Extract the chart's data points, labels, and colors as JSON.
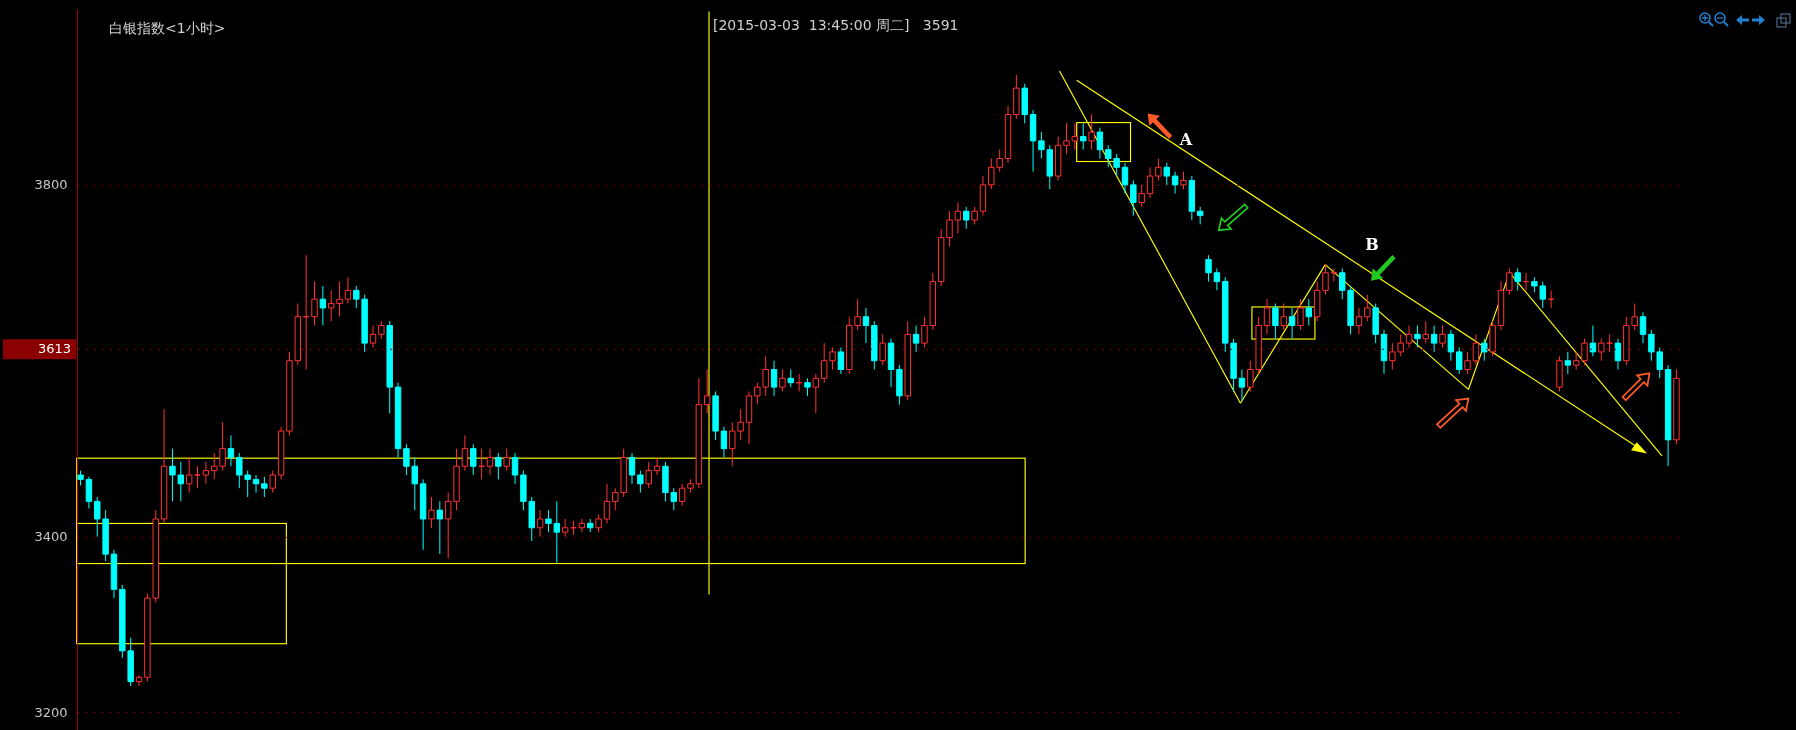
{
  "chart_data": {
    "type": "candlestick",
    "title": "白银指数<1小时>",
    "annotations": [
      "[2015-03-03  13:45:00 周二]   3591",
      "A",
      "B"
    ],
    "categories": [
      null,
      null,
      null,
      null,
      null,
      null,
      null,
      null,
      null,
      null,
      null,
      null,
      null,
      null,
      null,
      null,
      null,
      null,
      null,
      null,
      null,
      null,
      null,
      null,
      null,
      null,
      null,
      null,
      null,
      null,
      null,
      null,
      null,
      null,
      null,
      null,
      null,
      null,
      null,
      null,
      null,
      null,
      null,
      null,
      null,
      null,
      null,
      null,
      null,
      null,
      null,
      null,
      null,
      null,
      null,
      null,
      null,
      null,
      null,
      null,
      null,
      null,
      null,
      null,
      null,
      null,
      null,
      null,
      null,
      null,
      null,
      null,
      null,
      null,
      null,
      null,
      null,
      null,
      null,
      null,
      null,
      null,
      null,
      null,
      null,
      null,
      null,
      null,
      null,
      null,
      null,
      null,
      null,
      null,
      null,
      null,
      null,
      null,
      null,
      null,
      null,
      null,
      null,
      null,
      null,
      null,
      null,
      null,
      null,
      null,
      null,
      null,
      null,
      null,
      null,
      null,
      null,
      null,
      null,
      null,
      null,
      null,
      null,
      null,
      null,
      null,
      null,
      null,
      null,
      null,
      null,
      null,
      null,
      null,
      null,
      null,
      null,
      null,
      null,
      null,
      null,
      null,
      null,
      null,
      null,
      null,
      null,
      null,
      null,
      null,
      null,
      null,
      null,
      null,
      null,
      null,
      null,
      null,
      null,
      null,
      null,
      null,
      null,
      null,
      null,
      null,
      null,
      null,
      null,
      null,
      null,
      null,
      null,
      null,
      null,
      null,
      null,
      null,
      null,
      null,
      null,
      null,
      null,
      null,
      null,
      null,
      null,
      null,
      null,
      null,
      null,
      null
    ],
    "ohlc": [
      [
        3470,
        3475,
        3458,
        3465
      ],
      [
        3465,
        3468,
        3432,
        3440
      ],
      [
        3440,
        3445,
        3400,
        3420
      ],
      [
        3420,
        3430,
        3372,
        3380
      ],
      [
        3380,
        3385,
        3330,
        3340
      ],
      [
        3340,
        3345,
        3262,
        3270
      ],
      [
        3270,
        3285,
        3230,
        3235
      ],
      [
        3235,
        3242,
        3230,
        3240
      ],
      [
        3240,
        3335,
        3235,
        3330
      ],
      [
        3330,
        3430,
        3325,
        3420
      ],
      [
        3420,
        3545,
        3415,
        3480
      ],
      [
        3480,
        3500,
        3440,
        3470
      ],
      [
        3470,
        3485,
        3440,
        3460
      ],
      [
        3460,
        3490,
        3450,
        3470
      ],
      [
        3470,
        3480,
        3455,
        3470
      ],
      [
        3470,
        3485,
        3460,
        3475
      ],
      [
        3475,
        3495,
        3465,
        3480
      ],
      [
        3480,
        3530,
        3475,
        3500
      ],
      [
        3500,
        3515,
        3480,
        3490
      ],
      [
        3490,
        3495,
        3455,
        3470
      ],
      [
        3470,
        3475,
        3445,
        3465
      ],
      [
        3465,
        3470,
        3450,
        3460
      ],
      [
        3460,
        3468,
        3445,
        3455
      ],
      [
        3455,
        3475,
        3450,
        3470
      ],
      [
        3470,
        3525,
        3465,
        3520
      ],
      [
        3520,
        3610,
        3515,
        3600
      ],
      [
        3600,
        3665,
        3595,
        3650
      ],
      [
        3650,
        3720,
        3590,
        3650
      ],
      [
        3650,
        3690,
        3640,
        3670
      ],
      [
        3670,
        3685,
        3640,
        3660
      ],
      [
        3660,
        3680,
        3645,
        3665
      ],
      [
        3665,
        3690,
        3650,
        3670
      ],
      [
        3670,
        3695,
        3665,
        3680
      ],
      [
        3680,
        3685,
        3660,
        3670
      ],
      [
        3670,
        3675,
        3610,
        3620
      ],
      [
        3620,
        3640,
        3615,
        3630
      ],
      [
        3630,
        3645,
        3625,
        3640
      ],
      [
        3640,
        3645,
        3540,
        3570
      ],
      [
        3570,
        3575,
        3490,
        3500
      ],
      [
        3500,
        3505,
        3470,
        3480
      ],
      [
        3480,
        3490,
        3430,
        3460
      ],
      [
        3460,
        3465,
        3385,
        3420
      ],
      [
        3420,
        3445,
        3410,
        3430
      ],
      [
        3430,
        3440,
        3380,
        3420
      ],
      [
        3420,
        3450,
        3375,
        3440
      ],
      [
        3440,
        3500,
        3430,
        3480
      ],
      [
        3480,
        3515,
        3475,
        3500
      ],
      [
        3500,
        3505,
        3470,
        3480
      ],
      [
        3480,
        3500,
        3465,
        3480
      ],
      [
        3480,
        3500,
        3470,
        3490
      ],
      [
        3490,
        3495,
        3465,
        3480
      ],
      [
        3480,
        3500,
        3475,
        3490
      ],
      [
        3490,
        3495,
        3460,
        3470
      ],
      [
        3470,
        3475,
        3430,
        3440
      ],
      [
        3440,
        3445,
        3395,
        3410
      ],
      [
        3410,
        3430,
        3400,
        3420
      ],
      [
        3420,
        3430,
        3405,
        3415
      ],
      [
        3415,
        3440,
        3370,
        3405
      ],
      [
        3405,
        3420,
        3400,
        3410
      ],
      [
        3410,
        3418,
        3402,
        3410
      ],
      [
        3410,
        3420,
        3405,
        3415
      ],
      [
        3415,
        3420,
        3405,
        3410
      ],
      [
        3410,
        3425,
        3405,
        3420
      ],
      [
        3420,
        3460,
        3415,
        3440
      ],
      [
        3440,
        3455,
        3430,
        3450
      ],
      [
        3450,
        3500,
        3445,
        3490
      ],
      [
        3490,
        3495,
        3460,
        3470
      ],
      [
        3470,
        3475,
        3450,
        3460
      ],
      [
        3460,
        3485,
        3455,
        3475
      ],
      [
        3475,
        3490,
        3470,
        3480
      ],
      [
        3480,
        3485,
        3440,
        3450
      ],
      [
        3450,
        3455,
        3430,
        3440
      ],
      [
        3440,
        3460,
        3435,
        3455
      ],
      [
        3455,
        3465,
        3450,
        3460
      ],
      [
        3460,
        3580,
        3455,
        3550
      ],
      [
        3550,
        3590,
        3540,
        3560
      ],
      [
        3560,
        3565,
        3510,
        3520
      ],
      [
        3520,
        3525,
        3490,
        3500
      ],
      [
        3500,
        3530,
        3480,
        3520
      ],
      [
        3520,
        3545,
        3510,
        3530
      ],
      [
        3530,
        3565,
        3505,
        3560
      ],
      [
        3560,
        3575,
        3550,
        3570
      ],
      [
        3570,
        3605,
        3560,
        3590
      ],
      [
        3590,
        3600,
        3560,
        3570
      ],
      [
        3570,
        3590,
        3565,
        3580
      ],
      [
        3580,
        3590,
        3570,
        3575
      ],
      [
        3575,
        3585,
        3565,
        3575
      ],
      [
        3575,
        3580,
        3560,
        3570
      ],
      [
        3570,
        3585,
        3540,
        3580
      ],
      [
        3580,
        3620,
        3575,
        3600
      ],
      [
        3600,
        3615,
        3590,
        3610
      ],
      [
        3610,
        3615,
        3585,
        3590
      ],
      [
        3590,
        3650,
        3585,
        3640
      ],
      [
        3640,
        3670,
        3635,
        3650
      ],
      [
        3650,
        3660,
        3620,
        3640
      ],
      [
        3640,
        3645,
        3590,
        3600
      ],
      [
        3600,
        3630,
        3595,
        3620
      ],
      [
        3620,
        3625,
        3570,
        3590
      ],
      [
        3590,
        3595,
        3550,
        3560
      ],
      [
        3560,
        3645,
        3555,
        3630
      ],
      [
        3630,
        3640,
        3610,
        3620
      ],
      [
        3620,
        3650,
        3615,
        3640
      ],
      [
        3640,
        3700,
        3635,
        3690
      ],
      [
        3690,
        3750,
        3685,
        3740
      ],
      [
        3740,
        3770,
        3730,
        3760
      ],
      [
        3760,
        3780,
        3745,
        3770
      ],
      [
        3770,
        3775,
        3750,
        3760
      ],
      [
        3760,
        3775,
        3755,
        3770
      ],
      [
        3770,
        3810,
        3765,
        3800
      ],
      [
        3800,
        3830,
        3795,
        3820
      ],
      [
        3820,
        3840,
        3815,
        3830
      ],
      [
        3830,
        3890,
        3825,
        3880
      ],
      [
        3880,
        3925,
        3875,
        3910
      ],
      [
        3910,
        3915,
        3870,
        3880
      ],
      [
        3880,
        3885,
        3815,
        3850
      ],
      [
        3850,
        3860,
        3830,
        3840
      ],
      [
        3840,
        3845,
        3795,
        3810
      ],
      [
        3810,
        3855,
        3805,
        3845
      ],
      [
        3845,
        3870,
        3835,
        3850
      ],
      [
        3850,
        3870,
        3840,
        3855
      ],
      [
        3855,
        3870,
        3840,
        3850
      ],
      [
        3850,
        3880,
        3840,
        3860
      ],
      [
        3860,
        3865,
        3830,
        3840
      ],
      [
        3840,
        3845,
        3820,
        3830
      ],
      [
        3830,
        3835,
        3810,
        3820
      ],
      [
        3820,
        3825,
        3790,
        3800
      ],
      [
        3800,
        3805,
        3765,
        3780
      ],
      [
        3780,
        3800,
        3775,
        3790
      ],
      [
        3790,
        3820,
        3785,
        3810
      ],
      [
        3810,
        3830,
        3805,
        3820
      ],
      [
        3820,
        3825,
        3800,
        3810
      ],
      [
        3810,
        3815,
        3790,
        3800
      ],
      [
        3800,
        3815,
        3795,
        3805
      ],
      [
        3805,
        3810,
        3760,
        3770
      ],
      [
        3770,
        3775,
        3755,
        3765
      ],
      [
        3715,
        3720,
        3690,
        3700
      ],
      [
        3700,
        3705,
        3680,
        3690
      ],
      [
        3690,
        3695,
        3610,
        3620
      ],
      [
        3620,
        3625,
        3565,
        3580
      ],
      [
        3580,
        3590,
        3555,
        3570
      ],
      [
        3570,
        3600,
        3565,
        3590
      ],
      [
        3590,
        3650,
        3585,
        3640
      ],
      [
        3640,
        3670,
        3630,
        3660
      ],
      [
        3660,
        3665,
        3625,
        3640
      ],
      [
        3640,
        3665,
        3635,
        3650
      ],
      [
        3650,
        3660,
        3625,
        3640
      ],
      [
        3640,
        3670,
        3635,
        3660
      ],
      [
        3660,
        3670,
        3640,
        3650
      ],
      [
        3650,
        3690,
        3645,
        3680
      ],
      [
        3680,
        3710,
        3675,
        3700
      ],
      [
        3700,
        3705,
        3690,
        3700
      ],
      [
        3700,
        3705,
        3670,
        3680
      ],
      [
        3680,
        3685,
        3630,
        3640
      ],
      [
        3640,
        3660,
        3630,
        3650
      ],
      [
        3650,
        3675,
        3645,
        3660
      ],
      [
        3660,
        3665,
        3620,
        3630
      ],
      [
        3630,
        3635,
        3585,
        3600
      ],
      [
        3600,
        3620,
        3590,
        3610
      ],
      [
        3610,
        3630,
        3605,
        3620
      ],
      [
        3620,
        3640,
        3615,
        3630
      ],
      [
        3630,
        3640,
        3615,
        3625
      ],
      [
        3625,
        3645,
        3620,
        3630
      ],
      [
        3630,
        3640,
        3610,
        3620
      ],
      [
        3620,
        3640,
        3615,
        3630
      ],
      [
        3630,
        3635,
        3600,
        3610
      ],
      [
        3610,
        3615,
        3585,
        3590
      ],
      [
        3590,
        3610,
        3585,
        3600
      ],
      [
        3600,
        3630,
        3595,
        3620
      ],
      [
        3620,
        3625,
        3600,
        3610
      ],
      [
        3610,
        3645,
        3605,
        3640
      ],
      [
        3640,
        3690,
        3635,
        3680
      ],
      [
        3680,
        3705,
        3675,
        3700
      ],
      [
        3700,
        3705,
        3680,
        3690
      ],
      [
        3690,
        3700,
        3680,
        3690
      ],
      [
        3690,
        3695,
        3678,
        3685
      ],
      [
        3685,
        3690,
        3660,
        3670
      ],
      [
        3670,
        3680,
        3660,
        3670
      ],
      [
        3570,
        3605,
        3565,
        3600
      ],
      [
        3600,
        3610,
        3585,
        3595
      ],
      [
        3595,
        3610,
        3590,
        3600
      ],
      [
        3600,
        3625,
        3595,
        3620
      ],
      [
        3620,
        3640,
        3605,
        3610
      ],
      [
        3610,
        3625,
        3600,
        3620
      ],
      [
        3620,
        3630,
        3610,
        3620
      ],
      [
        3620,
        3625,
        3590,
        3600
      ],
      [
        3600,
        3650,
        3595,
        3640
      ],
      [
        3640,
        3665,
        3635,
        3650
      ],
      [
        3650,
        3655,
        3620,
        3630
      ],
      [
        3630,
        3635,
        3600,
        3610
      ],
      [
        3610,
        3615,
        3580,
        3590
      ],
      [
        3590,
        3595,
        3480,
        3510
      ],
      [
        3510,
        3590,
        3505,
        3580
      ]
    ],
    "colors": [
      "#00ffff",
      "#00ffff",
      "#00ffff",
      "#00ffff",
      "#00ffff",
      "#00ffff",
      "#00ffff",
      "#ff3232",
      "#ff3232",
      "#ff3232",
      "#ff3232",
      "#00ffff",
      "#00ffff",
      "#ff3232",
      "#ff3232",
      "#ff3232",
      "#ff3232",
      "#ff3232",
      "#00ffff",
      "#00ffff",
      "#00ffff",
      "#00ffff",
      "#00ffff",
      "#ff3232",
      "#ff3232",
      "#ff3232",
      "#ff3232",
      "#ff3232",
      "#ff3232",
      "#00ffff",
      "#ff3232",
      "#ff3232",
      "#ff3232",
      "#00ffff",
      "#00ffff",
      "#ff3232",
      "#ff3232",
      "#00ffff",
      "#00ffff",
      "#00ffff",
      "#00ffff",
      "#00ffff",
      "#ff3232",
      "#00ffff",
      "#ff3232",
      "#ff3232",
      "#ff3232",
      "#00ffff",
      "#ff3232",
      "#ff3232",
      "#00ffff",
      "#ff3232",
      "#00ffff",
      "#00ffff",
      "#00ffff",
      "#ff3232",
      "#00ffff",
      "#00ffff",
      "#ff3232",
      "#ff3232",
      "#ff3232",
      "#00ffff",
      "#ff3232",
      "#ff3232",
      "#ff3232",
      "#ff3232",
      "#00ffff",
      "#00ffff",
      "#ff3232",
      "#ff3232",
      "#00ffff",
      "#00ffff",
      "#ff3232",
      "#ff3232",
      "#ff3232",
      "#ff3232",
      "#00ffff",
      "#00ffff",
      "#ff3232",
      "#ff3232",
      "#ff3232",
      "#ff3232",
      "#ff3232",
      "#00ffff",
      "#ff3232",
      "#00ffff",
      "#ff3232",
      "#00ffff",
      "#ff3232",
      "#ff3232",
      "#ff3232",
      "#00ffff",
      "#ff3232",
      "#ff3232",
      "#00ffff",
      "#00ffff",
      "#ff3232",
      "#00ffff",
      "#00ffff",
      "#ff3232",
      "#00ffff",
      "#ff3232",
      "#ff3232",
      "#ff3232",
      "#ff3232",
      "#ff3232",
      "#00ffff",
      "#ff3232",
      "#ff3232",
      "#ff3232",
      "#ff3232",
      "#ff3232",
      "#ff3232",
      "#00ffff",
      "#00ffff",
      "#00ffff",
      "#00ffff",
      "#ff3232",
      "#ff3232",
      "#ff3232",
      "#00ffff",
      "#ff3232",
      "#00ffff",
      "#00ffff",
      "#00ffff",
      "#00ffff",
      "#00ffff",
      "#ff3232",
      "#ff3232",
      "#ff3232",
      "#00ffff",
      "#00ffff",
      "#ff3232",
      "#00ffff",
      "#00ffff",
      "#00ffff",
      "#00ffff",
      "#00ffff",
      "#00ffff",
      "#00ffff",
      "#ff3232",
      "#ff3232",
      "#ff3232",
      "#00ffff",
      "#ff3232",
      "#00ffff",
      "#ff3232",
      "#00ffff",
      "#ff3232",
      "#ff3232",
      "#ff3232",
      "#00ffff",
      "#00ffff",
      "#ff3232",
      "#ff3232",
      "#00ffff",
      "#00ffff",
      "#ff3232",
      "#ff3232",
      "#ff3232",
      "#00ffff",
      "#ff3232",
      "#00ffff",
      "#ff3232",
      "#00ffff",
      "#00ffff",
      "#ff3232",
      "#ff3232",
      "#00ffff",
      "#ff3232",
      "#ff3232",
      "#ff3232",
      "#00ffff",
      "#ff3232",
      "#00ffff",
      "#00ffff",
      "#ff3232",
      "#ff3232",
      "#00ffff",
      "#ff3232",
      "#ff3232",
      "#00ffff",
      "#ff3232",
      "#ff3232",
      "#00ffff",
      "#ff3232",
      "#ff3232",
      "#00ffff",
      "#00ffff",
      "#00ffff",
      "#00ffff",
      "#ff3232"
    ],
    "ylim": [
      3180,
      4000
    ],
    "yticks": [
      3200,
      3400,
      3800
    ],
    "grid": "y",
    "tick_labels": "y",
    "ref_lines": [
      {
        "axis": "y",
        "value": 3613,
        "label": "3613",
        "color": "#8b0000",
        "line_style": "dotted"
      }
    ]
  }
}
